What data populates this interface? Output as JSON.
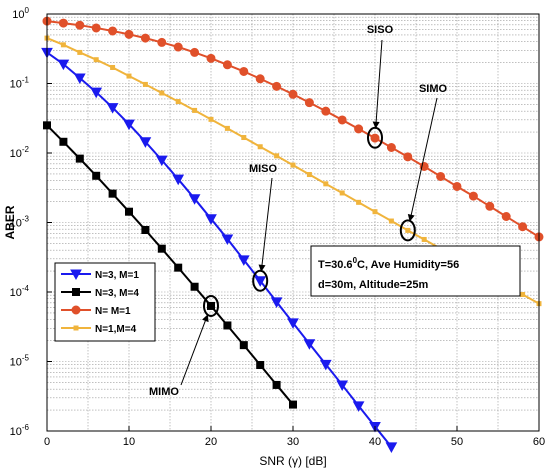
{
  "chart_data": {
    "type": "line",
    "xlabel": "SNR (γ) [dB]",
    "ylabel": "ABER",
    "xlim": [
      0,
      60
    ],
    "ylim": [
      1e-06,
      1
    ],
    "yscale": "log",
    "grid": true,
    "xticks": [
      0,
      10,
      20,
      30,
      40,
      50,
      60
    ],
    "yticks": [
      {
        "value": 1,
        "base": "10",
        "exp": "0"
      },
      {
        "value": 0.1,
        "base": "10",
        "exp": "-1"
      },
      {
        "value": 0.01,
        "base": "10",
        "exp": "-2"
      },
      {
        "value": 0.001,
        "base": "10",
        "exp": "-3"
      },
      {
        "value": 0.0001,
        "base": "10",
        "exp": "-4"
      },
      {
        "value": 1e-05,
        "base": "10",
        "exp": "-5"
      },
      {
        "value": 1e-06,
        "base": "10",
        "exp": "-6"
      }
    ],
    "legend_position": "left",
    "series": [
      {
        "name": "N=3, M=1",
        "color": "#1a1aee",
        "marker": "triangle-down",
        "x": [
          0,
          2,
          4,
          6,
          8,
          10,
          12,
          14,
          16,
          18,
          20,
          22,
          24,
          26,
          28,
          30,
          32,
          34,
          36,
          38,
          40,
          42
        ],
        "y": [
          0.28,
          0.19,
          0.12,
          0.075,
          0.045,
          0.026,
          0.0145,
          0.0079,
          0.0042,
          0.0022,
          0.00113,
          0.00058,
          0.00029,
          0.000145,
          7.2e-05,
          3.6e-05,
          1.8e-05,
          9.1e-06,
          4.6e-06,
          2.3e-06,
          1.16e-06,
          5.9e-07
        ]
      },
      {
        "name": "N=3, M=4",
        "color": "#000000",
        "marker": "square",
        "x": [
          0,
          2,
          4,
          6,
          8,
          10,
          12,
          14,
          16,
          18,
          20,
          22,
          24,
          26,
          28,
          30
        ],
        "y": [
          0.025,
          0.0145,
          0.0083,
          0.0047,
          0.0026,
          0.00143,
          0.00078,
          0.00042,
          0.000224,
          0.000119,
          6.3e-05,
          3.3e-05,
          1.72e-05,
          8.9e-06,
          4.6e-06,
          2.4e-06
        ]
      },
      {
        "name": "N= M=1",
        "color": "#e0502a",
        "marker": "circle",
        "x": [
          0,
          2,
          4,
          6,
          8,
          10,
          12,
          14,
          16,
          18,
          20,
          22,
          24,
          26,
          28,
          30,
          32,
          34,
          36,
          38,
          40,
          42,
          44,
          46,
          48,
          50,
          52,
          54,
          56,
          58,
          60
        ],
        "y": [
          0.79,
          0.74,
          0.69,
          0.63,
          0.57,
          0.51,
          0.45,
          0.39,
          0.335,
          0.28,
          0.23,
          0.186,
          0.149,
          0.117,
          0.091,
          0.07,
          0.053,
          0.04,
          0.0299,
          0.0222,
          0.0164,
          0.012,
          0.0088,
          0.0064,
          0.0046,
          0.0033,
          0.0024,
          0.00171,
          0.00122,
          0.00087,
          0.00062
        ]
      },
      {
        "name": "N=1,M=4",
        "color": "#f0b43c",
        "marker": "small-square",
        "x": [
          0,
          2,
          4,
          6,
          8,
          10,
          12,
          14,
          16,
          18,
          20,
          22,
          24,
          26,
          28,
          30,
          32,
          34,
          36,
          38,
          40,
          42,
          44,
          46,
          48,
          50,
          52,
          54,
          56,
          58,
          60
        ],
        "y": [
          0.45,
          0.36,
          0.28,
          0.22,
          0.17,
          0.128,
          0.097,
          0.073,
          0.055,
          0.041,
          0.0305,
          0.0226,
          0.0167,
          0.0123,
          0.0091,
          0.0067,
          0.0049,
          0.0036,
          0.00266,
          0.00195,
          0.00143,
          0.00105,
          0.00077,
          0.00057,
          0.00042,
          0.00031,
          0.000228,
          0.000168,
          0.000124,
          9.2e-05,
          6.8e-05
        ]
      }
    ],
    "annotations": [
      {
        "text": "SISO",
        "target_x": 40,
        "target_y": 0.0166
      },
      {
        "text": "SIMO",
        "target_x": 44,
        "target_y": 0.00077
      },
      {
        "text": "MISO",
        "target_x": 26,
        "target_y": 0.000145
      },
      {
        "text": "MIMO",
        "target_x": 20,
        "target_y": 6.3e-05
      }
    ],
    "info_box": {
      "line1_prefix": "T=30.6",
      "line1_sup": "0",
      "line1_suffix": "C, Ave Humidity=56",
      "line2": "d=30m, Altitude=25m"
    }
  }
}
